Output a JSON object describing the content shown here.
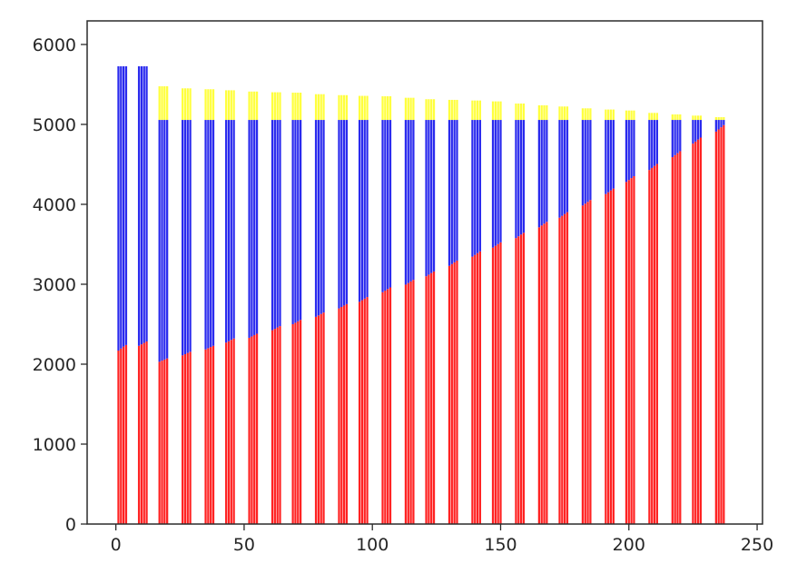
{
  "chart_data": {
    "type": "bar",
    "stacked": true,
    "title": "",
    "xlabel": "",
    "ylabel": "",
    "legend": null,
    "grid": false,
    "background_color": "#ffffff",
    "spine_color": "#2b2b2b",
    "tick_color": "#2b2b2b",
    "tick_label_color": "#262626",
    "series_colors": {
      "red": "#ff2222",
      "blue": "#2a2aee",
      "yellow": "#ffff3d"
    },
    "xlim": [
      -11.2,
      252.1
    ],
    "ylim": [
      0,
      6295
    ],
    "xticks": [
      0,
      50,
      100,
      150,
      200,
      250
    ],
    "xtick_labels": [
      "0",
      "50",
      "100",
      "150",
      "200",
      "250"
    ],
    "yticks": [
      0,
      1000,
      2000,
      3000,
      4000,
      5000,
      6000
    ],
    "ytick_labels": [
      "0",
      "1000",
      "2000",
      "3000",
      "4000",
      "5000",
      "6000"
    ],
    "bar_width": 0.8,
    "bars_per_group": 4,
    "groups": [
      {
        "x": 1,
        "red": [
          2170,
          2195,
          2220,
          2240
        ],
        "blue_top": 5727,
        "yellow_top": null
      },
      {
        "x": 9,
        "red": [
          2230,
          2248,
          2266,
          2284
        ],
        "blue_top": 5727,
        "yellow_top": null
      },
      {
        "x": 17,
        "red": [
          2030,
          2044,
          2058,
          2072
        ],
        "blue_top": 5056,
        "yellow_top": 5477
      },
      {
        "x": 26,
        "red": [
          2110,
          2125,
          2140,
          2155
        ],
        "blue_top": 5056,
        "yellow_top": 5451
      },
      {
        "x": 35,
        "red": [
          2185,
          2200,
          2215,
          2230
        ],
        "blue_top": 5056,
        "yellow_top": 5440
      },
      {
        "x": 43,
        "red": [
          2270,
          2287,
          2304,
          2321
        ],
        "blue_top": 5056,
        "yellow_top": 5427
      },
      {
        "x": 52,
        "red": [
          2330,
          2347,
          2364,
          2381
        ],
        "blue_top": 5056,
        "yellow_top": 5411
      },
      {
        "x": 61,
        "red": [
          2425,
          2442,
          2459,
          2476
        ],
        "blue_top": 5056,
        "yellow_top": 5402
      },
      {
        "x": 69,
        "red": [
          2500,
          2518,
          2536,
          2554
        ],
        "blue_top": 5056,
        "yellow_top": 5397
      },
      {
        "x": 78,
        "red": [
          2592,
          2610,
          2628,
          2646
        ],
        "blue_top": 5056,
        "yellow_top": 5378
      },
      {
        "x": 87,
        "red": [
          2698,
          2716,
          2734,
          2752
        ],
        "blue_top": 5056,
        "yellow_top": 5366
      },
      {
        "x": 95,
        "red": [
          2780,
          2800,
          2820,
          2840
        ],
        "blue_top": 5056,
        "yellow_top": 5357
      },
      {
        "x": 104,
        "red": [
          2900,
          2920,
          2940,
          2960
        ],
        "blue_top": 5056,
        "yellow_top": 5352
      },
      {
        "x": 113,
        "red": [
          2995,
          3015,
          3035,
          3055
        ],
        "blue_top": 5056,
        "yellow_top": 5333
      },
      {
        "x": 121,
        "red": [
          3100,
          3120,
          3140,
          3160
        ],
        "blue_top": 5056,
        "yellow_top": 5315
      },
      {
        "x": 130,
        "red": [
          3230,
          3252,
          3274,
          3296
        ],
        "blue_top": 5056,
        "yellow_top": 5307
      },
      {
        "x": 139,
        "red": [
          3345,
          3367,
          3389,
          3411
        ],
        "blue_top": 5056,
        "yellow_top": 5299
      },
      {
        "x": 147,
        "red": [
          3458,
          3480,
          3502,
          3524
        ],
        "blue_top": 5056,
        "yellow_top": 5288
      },
      {
        "x": 156,
        "red": [
          3578,
          3600,
          3622,
          3644
        ],
        "blue_top": 5056,
        "yellow_top": 5261
      },
      {
        "x": 165,
        "red": [
          3712,
          3735,
          3758,
          3781
        ],
        "blue_top": 5056,
        "yellow_top": 5239
      },
      {
        "x": 173,
        "red": [
          3833,
          3856,
          3879,
          3902
        ],
        "blue_top": 5056,
        "yellow_top": 5224
      },
      {
        "x": 182,
        "red": [
          3985,
          4008,
          4031,
          4054
        ],
        "blue_top": 5056,
        "yellow_top": 5201
      },
      {
        "x": 191,
        "red": [
          4128,
          4151,
          4174,
          4197
        ],
        "blue_top": 5056,
        "yellow_top": 5186
      },
      {
        "x": 199,
        "red": [
          4280,
          4304,
          4328,
          4352
        ],
        "blue_top": 5056,
        "yellow_top": 5174
      },
      {
        "x": 208,
        "red": [
          4430,
          4455,
          4480,
          4505
        ],
        "blue_top": 5056,
        "yellow_top": 5144
      },
      {
        "x": 217,
        "red": [
          4590,
          4615,
          4640,
          4665
        ],
        "blue_top": 5056,
        "yellow_top": 5125
      },
      {
        "x": 225,
        "red": [
          4760,
          4785,
          4810,
          4835
        ],
        "blue_top": 5056,
        "yellow_top": 5110
      },
      {
        "x": 234,
        "red": [
          4910,
          4937,
          4964,
          4991
        ],
        "blue_top": 5056,
        "yellow_top": 5091
      }
    ]
  }
}
